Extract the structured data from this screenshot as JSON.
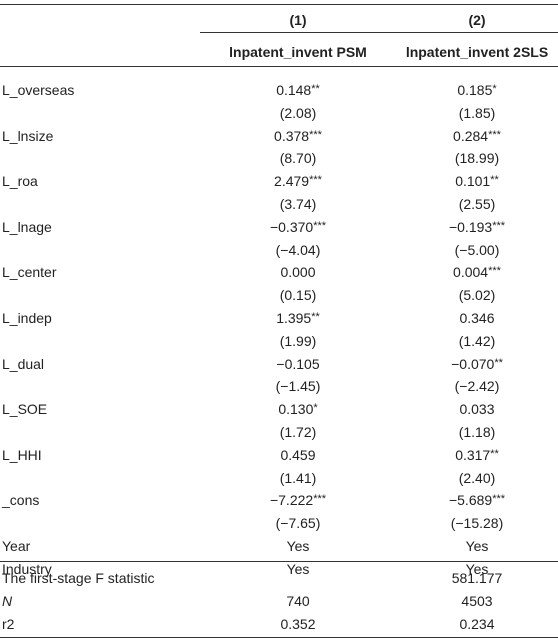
{
  "header": {
    "col_numbers": [
      "(1)",
      "(2)"
    ],
    "col_titles": [
      "lnpatent_invent PSM",
      "lnpatent_invent 2SLS"
    ]
  },
  "rows": [
    {
      "label": "L_overseas",
      "c1": "0.148",
      "s1": "**",
      "c2": "0.185",
      "s2": "*"
    },
    {
      "label": "",
      "c1": "(2.08)",
      "s1": "",
      "c2": "(1.85)",
      "s2": ""
    },
    {
      "label": "L_lnsize",
      "c1": "0.378",
      "s1": "***",
      "c2": "0.284",
      "s2": "***"
    },
    {
      "label": "",
      "c1": "(8.70)",
      "s1": "",
      "c2": "(18.99)",
      "s2": ""
    },
    {
      "label": "L_roa",
      "c1": "2.479",
      "s1": "***",
      "c2": "0.101",
      "s2": "**"
    },
    {
      "label": "",
      "c1": "(3.74)",
      "s1": "",
      "c2": "(2.55)",
      "s2": ""
    },
    {
      "label": "L_lnage",
      "c1": "−0.370",
      "s1": "***",
      "c2": "−0.193",
      "s2": "***"
    },
    {
      "label": "",
      "c1": "(−4.04)",
      "s1": "",
      "c2": "(−5.00)",
      "s2": ""
    },
    {
      "label": "L_center",
      "c1": "0.000",
      "s1": "",
      "c2": "0.004",
      "s2": "***"
    },
    {
      "label": "",
      "c1": "(0.15)",
      "s1": "",
      "c2": "(5.02)",
      "s2": ""
    },
    {
      "label": "L_indep",
      "c1": "1.395",
      "s1": "**",
      "c2": "0.346",
      "s2": ""
    },
    {
      "label": "",
      "c1": "(1.99)",
      "s1": "",
      "c2": "(1.42)",
      "s2": ""
    },
    {
      "label": "L_dual",
      "c1": "−0.105",
      "s1": "",
      "c2": "−0.070",
      "s2": "**"
    },
    {
      "label": "",
      "c1": "(−1.45)",
      "s1": "",
      "c2": "(−2.42)",
      "s2": ""
    },
    {
      "label": "L_SOE",
      "c1": "0.130",
      "s1": "*",
      "c2": "0.033",
      "s2": ""
    },
    {
      "label": "",
      "c1": "(1.72)",
      "s1": "",
      "c2": "(1.18)",
      "s2": ""
    },
    {
      "label": "L_HHI",
      "c1": "0.459",
      "s1": "",
      "c2": "0.317",
      "s2": "**"
    },
    {
      "label": "",
      "c1": "(1.41)",
      "s1": "",
      "c2": "(2.40)",
      "s2": ""
    },
    {
      "label": "_cons",
      "c1": "−7.222",
      "s1": "***",
      "c2": "−5.689",
      "s2": "***"
    },
    {
      "label": "",
      "c1": "(−7.65)",
      "s1": "",
      "c2": "(−15.28)",
      "s2": ""
    },
    {
      "label": "Year",
      "c1": "Yes",
      "s1": "",
      "c2": "Yes",
      "s2": ""
    },
    {
      "label": "Industry",
      "c1": "Yes",
      "s1": "",
      "c2": "Yes",
      "s2": ""
    }
  ],
  "footer": [
    {
      "label": "The first-stage F statistic",
      "italic": false,
      "c1": "",
      "c2": "581.177"
    },
    {
      "label": "N",
      "italic": true,
      "c1": "740",
      "c2": "4503"
    },
    {
      "label": "r2",
      "italic": false,
      "c1": "0.352",
      "c2": "0.234"
    }
  ]
}
